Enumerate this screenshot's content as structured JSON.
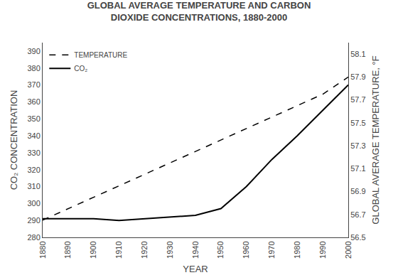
{
  "chart_data": {
    "type": "line",
    "title": "GLOBAL AVERAGE TEMPERATURE AND CARBON\nDIOXIDE CONCENTRATIONS, 1880-2000",
    "xlabel": "YEAR",
    "ylabel": "CO₂ CONCENTRATION",
    "y2label": "GLOBAL AVERAGE TEMPERATURE, °F",
    "x": [
      1880,
      1890,
      1900,
      1910,
      1920,
      1930,
      1940,
      1950,
      1960,
      1970,
      1980,
      1990,
      2000
    ],
    "series": [
      {
        "name": "CO₂",
        "color": "#000000",
        "line_style": "solid",
        "values": [
          291,
          291,
          291,
          290,
          291,
          292,
          293,
          297,
          310,
          326,
          340,
          355,
          370
        ]
      },
      {
        "name": "TEMPERATURE",
        "color": "#000000",
        "line_style": "dashed",
        "axis": "y2",
        "values": [
          56.65,
          56.75,
          56.85,
          56.95,
          57.05,
          57.15,
          57.25,
          57.35,
          57.45,
          57.55,
          57.65,
          57.75,
          57.9
        ]
      }
    ],
    "xlim": [
      1880,
      2000
    ],
    "xticks": [
      1880,
      1890,
      1900,
      1910,
      1920,
      1930,
      1940,
      1950,
      1960,
      1970,
      1980,
      1990,
      2000
    ],
    "ylim": [
      280,
      395
    ],
    "yticks": [
      280,
      290,
      300,
      310,
      320,
      330,
      340,
      350,
      360,
      370,
      380,
      390
    ],
    "y2lim": [
      56.5,
      58.2
    ],
    "y2ticks": [
      56.5,
      56.7,
      56.9,
      57.1,
      57.3,
      57.5,
      57.7,
      57.9,
      58.1
    ],
    "grid": false,
    "legend": "upper left"
  }
}
